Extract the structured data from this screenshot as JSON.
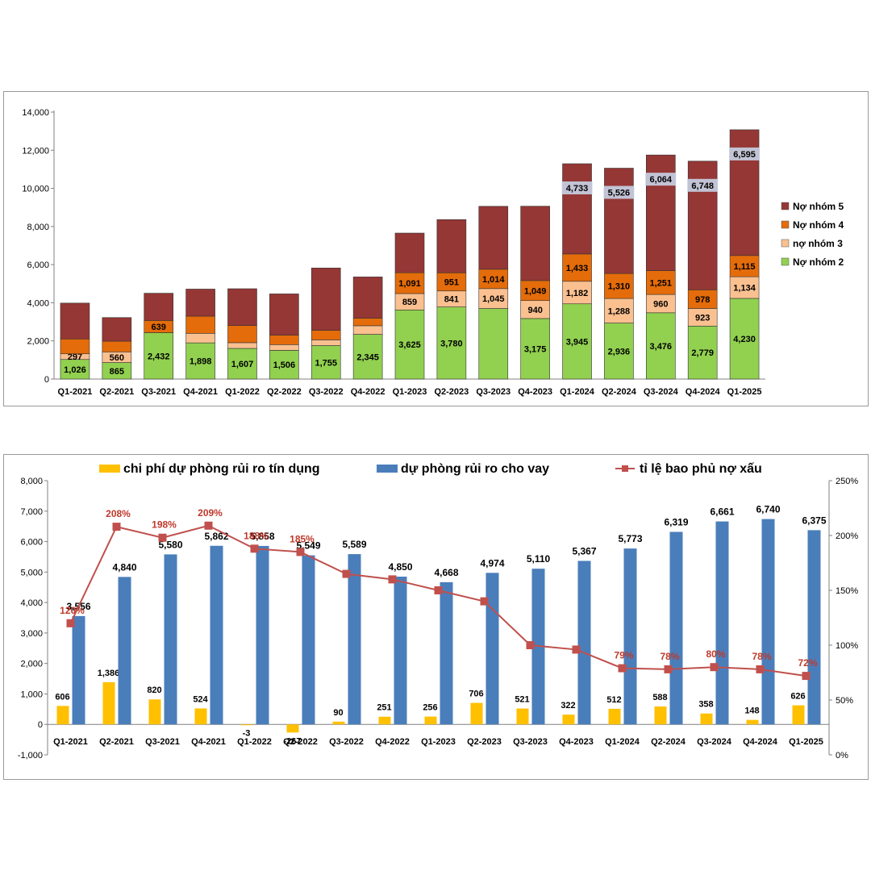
{
  "charts": [
    {
      "type": "bar",
      "stacked": true,
      "title": "",
      "xlabel": "",
      "ylabel": "",
      "ylim": [
        0,
        14000
      ],
      "yticks": [
        "0",
        "2,000",
        "4,000",
        "6,000",
        "8,000",
        "10,000",
        "12,000",
        "14,000"
      ],
      "grid": false,
      "legend_position": "right",
      "categories": [
        "Q1-2021",
        "Q2-2021",
        "Q3-2021",
        "Q4-2021",
        "Q1-2022",
        "Q2-2022",
        "Q3-2022",
        "Q4-2022",
        "Q1-2023",
        "Q2-2023",
        "Q3-2023",
        "Q4-2023",
        "Q1-2024",
        "Q2-2024",
        "Q3-2024",
        "Q4-2024",
        "Q1-2025"
      ],
      "series": [
        {
          "name": "Nợ nhóm 2",
          "color": "#92d050",
          "values": [
            1026,
            865,
            2432,
            1898,
            1607,
            1506,
            1755,
            2345,
            3625,
            3780,
            3700,
            3175,
            3945,
            2936,
            3476,
            2779,
            4230
          ],
          "labels": [
            "1,026",
            "865",
            "2,432",
            "1,898",
            "1,607",
            "1,506",
            "1,755",
            "2,345",
            "3,625",
            "3,780",
            "",
            "3,175",
            "3,945",
            "2,936",
            "3,476",
            "2,779",
            "4,230"
          ]
        },
        {
          "name": "nợ nhóm 3",
          "color": "#fac090",
          "values": [
            297,
            560,
            0,
            500,
            300,
            300,
            300,
            450,
            859,
            841,
            1045,
            940,
            1182,
            1288,
            960,
            923,
            1134
          ],
          "labels": [
            "297",
            "560",
            "",
            "",
            "",
            "",
            "",
            "",
            "859",
            "841",
            "1,045",
            "940",
            "1,182",
            "1,288",
            "960",
            "923",
            "1,134"
          ]
        },
        {
          "name": "Nợ nhóm 4",
          "color": "#e46c0a",
          "values": [
            780,
            560,
            639,
            900,
            900,
            500,
            500,
            400,
            1091,
            951,
            1014,
            1049,
            1433,
            1310,
            1251,
            978,
            1115
          ],
          "labels": [
            "",
            "",
            "639",
            "",
            "",
            "",
            "",
            "",
            "1,091",
            "951",
            "1,014",
            "1,049",
            "1,433",
            "1,310",
            "1,251",
            "978",
            "1,115"
          ]
        },
        {
          "name": "Nợ nhóm 5",
          "color": "#953735",
          "values": [
            1880,
            1240,
            1430,
            1420,
            1930,
            2160,
            3270,
            2160,
            2080,
            2790,
            3300,
            3900,
            4733,
            5526,
            6064,
            6748,
            6595
          ],
          "labels": [
            "",
            "",
            "",
            "",
            "",
            "",
            "",
            "",
            "",
            "",
            "",
            "",
            "4,733",
            "5,526",
            "6,064",
            "6,748",
            "6,595"
          ]
        }
      ],
      "legend_order": [
        "Nợ nhóm 5",
        "Nợ nhóm 4",
        "nợ nhóm 3",
        "Nợ nhóm 2"
      ]
    },
    {
      "type": "bar+line",
      "title": "",
      "xlabel": "",
      "ylabel": "",
      "ylim": [
        -1000,
        8000
      ],
      "yticks": [
        "-1,000",
        "0",
        "1,000",
        "2,000",
        "3,000",
        "4,000",
        "5,000",
        "6,000",
        "7,000",
        "8,000"
      ],
      "y2lim": [
        0,
        250
      ],
      "y2ticks": [
        "0%",
        "50%",
        "100%",
        "150%",
        "200%",
        "250%"
      ],
      "grid": false,
      "legend_position": "top",
      "categories": [
        "Q1-2021",
        "Q2-2021",
        "Q3-2021",
        "Q4-2021",
        "Q1-2022",
        "Q2-2022",
        "Q3-2022",
        "Q4-2022",
        "Q1-2023",
        "Q2-2023",
        "Q3-2023",
        "Q4-2023",
        "Q1-2024",
        "Q2-2024",
        "Q3-2024",
        "Q4-2024",
        "Q1-2025"
      ],
      "series": [
        {
          "name": "chi phí dự phòng rủi ro tín dụng",
          "color": "#ffc000",
          "kind": "bar",
          "values": [
            606,
            1386,
            820,
            524,
            -3,
            -267,
            90,
            251,
            256,
            706,
            521,
            322,
            512,
            588,
            358,
            148,
            626
          ],
          "labels": [
            "606",
            "1,386",
            "820",
            "524",
            "-3",
            "-267",
            "90",
            "251",
            "256",
            "706",
            "521",
            "322",
            "512",
            "588",
            "358",
            "148",
            "626"
          ]
        },
        {
          "name": "dự phòng rủi ro cho vay",
          "color": "#4a7ebb",
          "kind": "bar",
          "values": [
            3556,
            4840,
            5580,
            5862,
            5858,
            5549,
            5589,
            4850,
            4668,
            4974,
            5110,
            5367,
            5773,
            6319,
            6661,
            6740,
            6375
          ],
          "labels": [
            "3,556",
            "4,840",
            "5,580",
            "5,862",
            "5,858",
            "5,549",
            "5,589",
            "4,850",
            "4,668",
            "4,974",
            "5,110",
            "5,367",
            "5,773",
            "6,319",
            "6,661",
            "6,740",
            "6,375"
          ]
        },
        {
          "name": "tỉ lệ bao phủ nợ xấu",
          "color": "#c0504d",
          "kind": "line",
          "values": [
            120,
            208,
            198,
            209,
            188,
            185,
            165,
            160,
            150,
            140,
            100,
            96,
            79,
            78,
            80,
            78,
            72
          ],
          "labels": [
            "120%",
            "208%",
            "198%",
            "209%",
            "188%",
            "185%",
            "",
            "",
            "",
            "",
            "",
            "",
            "79%",
            "78%",
            "80%",
            "78%",
            "72%"
          ]
        }
      ]
    }
  ]
}
